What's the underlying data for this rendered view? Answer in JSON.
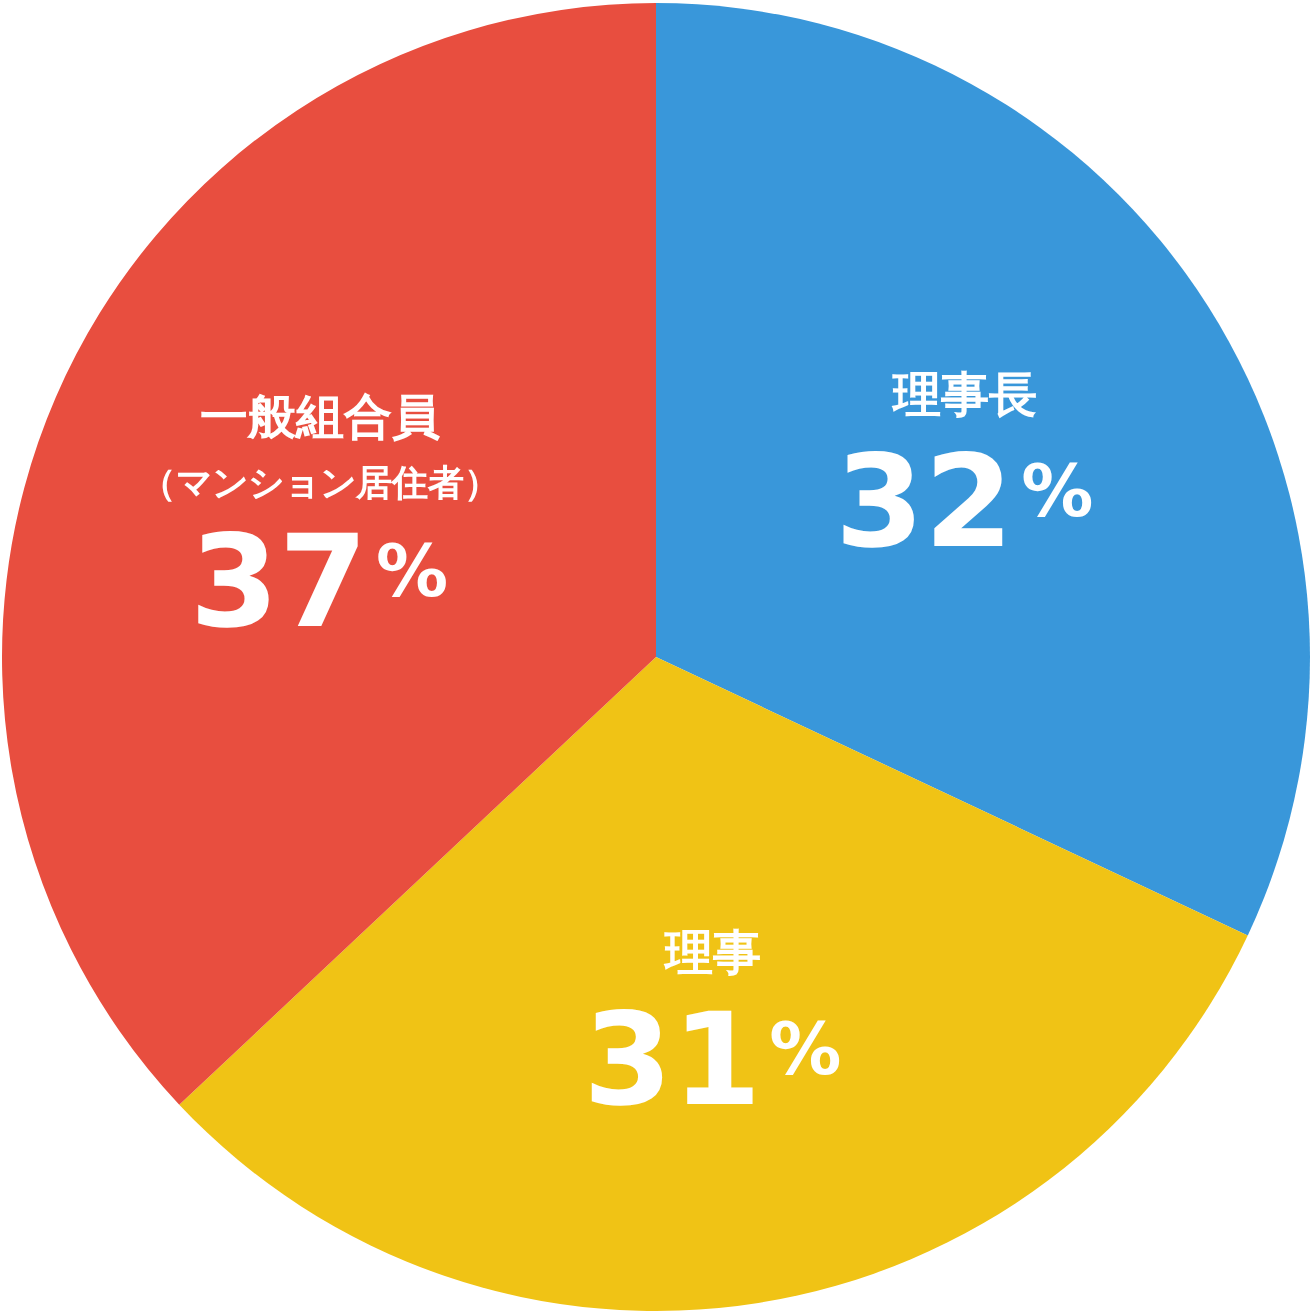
{
  "chart_data": {
    "type": "pie",
    "categories": [
      "理事長",
      "理事",
      "一般組合員（マンション居住者）"
    ],
    "values": [
      32,
      31,
      37
    ],
    "colors": [
      "#3997da",
      "#f0c315",
      "#e84e3f"
    ],
    "value_labels": [
      "32%",
      "31%",
      "37%"
    ]
  }
}
